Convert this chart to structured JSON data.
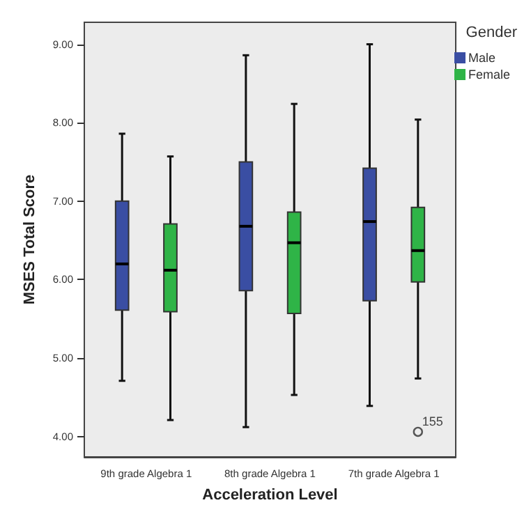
{
  "chart_data": {
    "type": "box",
    "xlabel": "Acceleration Level",
    "ylabel": "MSES Total Score",
    "legend_title": "Gender",
    "legend": "top right",
    "categories": [
      "9th grade Algebra 1",
      "8th grade Algebra 1",
      "7th grade Algebra 1"
    ],
    "series": [
      {
        "name": "Male",
        "color": "#3a4ea3",
        "boxes": [
          {
            "low": 4.71,
            "q1": 5.61,
            "median": 6.2,
            "q3": 7.0,
            "high": 7.86
          },
          {
            "low": 4.12,
            "q1": 5.86,
            "median": 6.68,
            "q3": 7.5,
            "high": 8.86
          },
          {
            "low": 4.39,
            "q1": 5.73,
            "median": 6.74,
            "q3": 7.42,
            "high": 9.0
          }
        ]
      },
      {
        "name": "Female",
        "color": "#2fb447",
        "boxes": [
          {
            "low": 4.21,
            "q1": 5.59,
            "median": 6.12,
            "q3": 6.71,
            "high": 7.57
          },
          {
            "low": 4.53,
            "q1": 5.57,
            "median": 6.47,
            "q3": 6.86,
            "high": 8.24
          },
          {
            "low": 4.74,
            "q1": 5.97,
            "median": 6.37,
            "q3": 6.92,
            "high": 8.04,
            "outliers": [
              4.06
            ]
          }
        ]
      }
    ],
    "annotations": [
      "155"
    ],
    "ylim": [
      3.74,
      9.28
    ],
    "yticks": [
      {
        "value": 4,
        "label": "4.00"
      },
      {
        "value": 5,
        "label": "5.00"
      },
      {
        "value": 6,
        "label": "6.00"
      },
      {
        "value": 7,
        "label": "7.00"
      },
      {
        "value": 8,
        "label": "8.00"
      },
      {
        "value": 9,
        "label": "9.00"
      }
    ],
    "grid": false
  }
}
